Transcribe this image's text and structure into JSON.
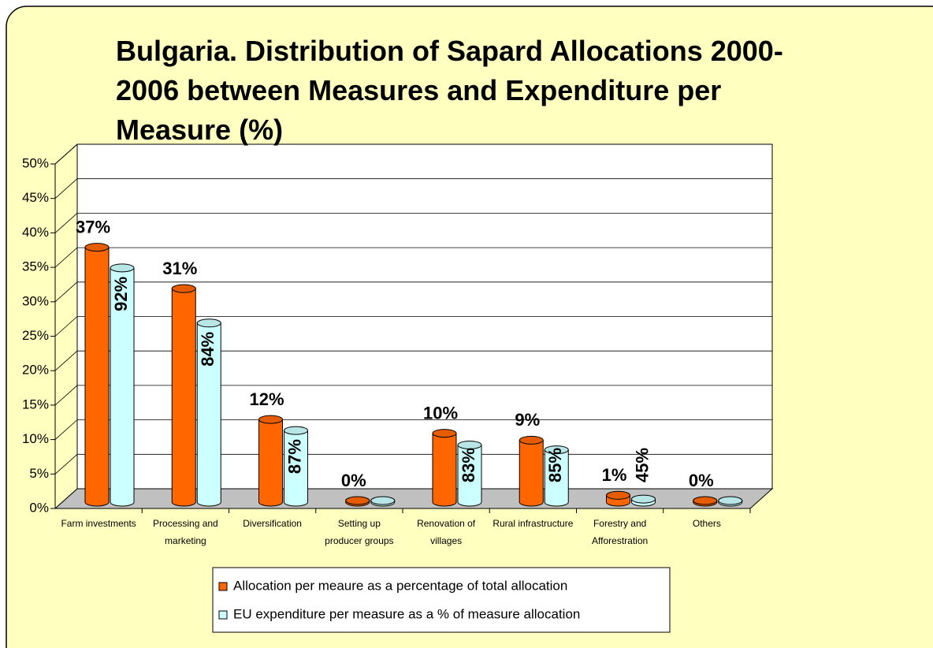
{
  "chart_data": {
    "type": "bar",
    "title": "Bulgaria. Distribution of Sapard Allocations 2000-2006 between Measures and Expenditure per Measure (%)",
    "categories": [
      "Farm investments",
      "Processing and marketing",
      "Diversification",
      "Setting up producer groups",
      "Renovation of villages",
      "Rural infrastructure",
      "Forestry and Afforestration",
      "Others"
    ],
    "series": [
      {
        "name": "Allocation per meaure as a percentage of total allocation",
        "color": "#ff6600",
        "values": [
          37,
          31,
          12,
          0,
          10,
          9,
          1,
          0
        ],
        "value_labels": [
          "37%",
          "31%",
          "12%",
          "0%",
          "10%",
          "9%",
          "1%",
          "0%"
        ]
      },
      {
        "name": "EU expenditure per measure as a % of measure allocation",
        "color": "#ccffff",
        "values": [
          34,
          26,
          10.4,
          0,
          8.3,
          7.6,
          0.45,
          0
        ],
        "rate_labels": [
          "92%",
          "84%",
          "87%",
          null,
          "83%",
          "85%",
          "45%",
          null
        ]
      }
    ],
    "ylim": [
      0,
      50
    ],
    "yticks": [
      {
        "value": 0,
        "label": "0%"
      },
      {
        "value": 5,
        "label": "5%"
      },
      {
        "value": 10,
        "label": "10%"
      },
      {
        "value": 15,
        "label": "15%"
      },
      {
        "value": 20,
        "label": "20%"
      },
      {
        "value": 25,
        "label": "25%"
      },
      {
        "value": 30,
        "label": "30%"
      },
      {
        "value": 35,
        "label": "35%"
      },
      {
        "value": 40,
        "label": "40%"
      },
      {
        "value": 45,
        "label": "45%"
      },
      {
        "value": 50,
        "label": "50%"
      }
    ],
    "grid": true
  }
}
